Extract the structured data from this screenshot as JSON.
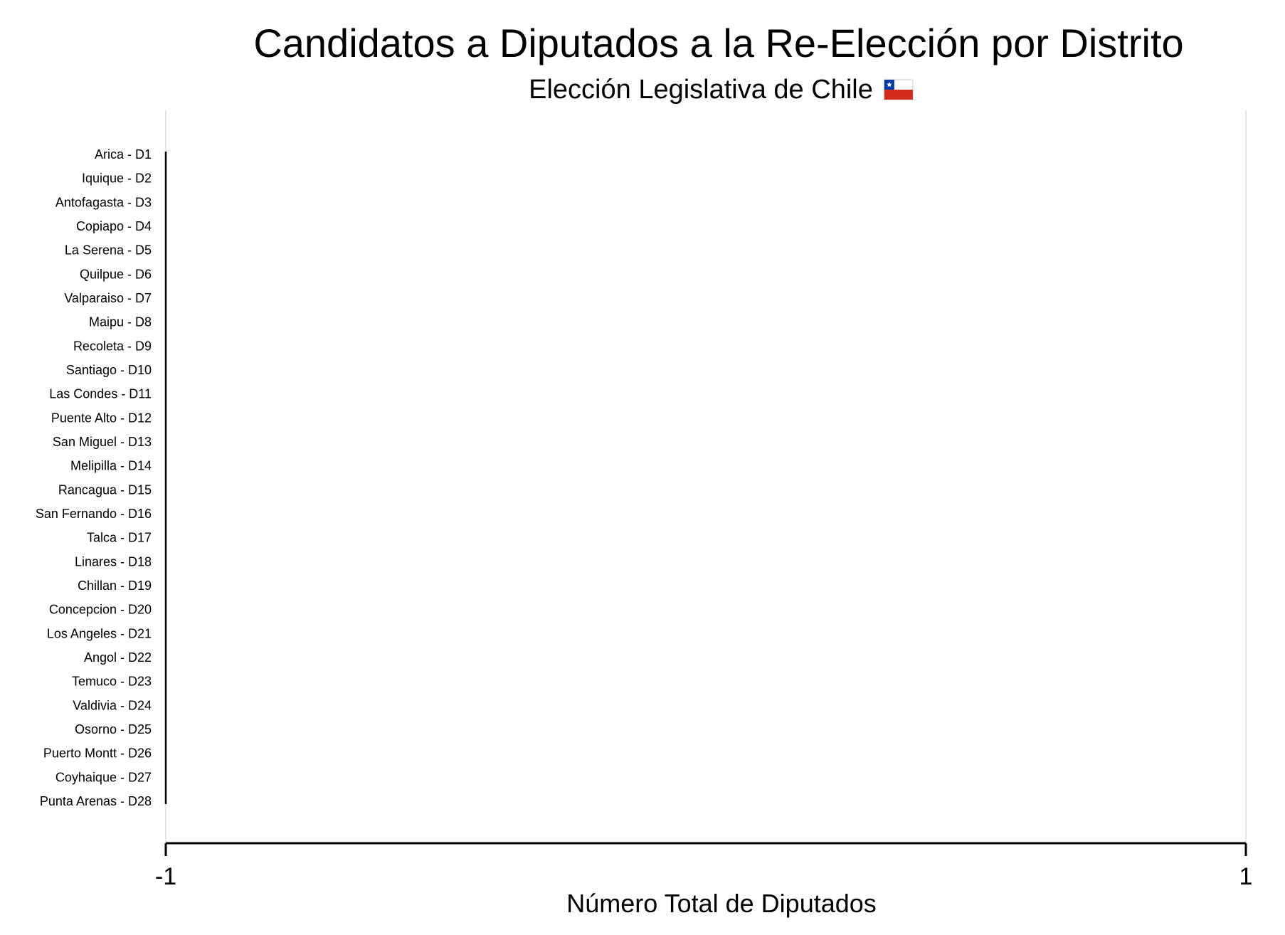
{
  "chart_data": {
    "type": "bar",
    "orientation": "horizontal",
    "title": "Candidatos a Diputados a la Re-Elección por Distrito",
    "subtitle": "Elección Legislativa de Chile",
    "subtitle_icon": "chile-flag-icon",
    "xlabel": "Número Total de Diputados",
    "ylabel": "",
    "xlim": [
      -1,
      1
    ],
    "xticks": [
      -1,
      1
    ],
    "xtick_labels": [
      "-1",
      "1"
    ],
    "grid": false,
    "legend": "none",
    "categories": [
      "Arica - D1",
      "Iquique - D2",
      "Antofagasta - D3",
      "Copiapo - D4",
      "La Serena - D5",
      "Quilpue - D6",
      "Valparaiso - D7",
      "Maipu - D8",
      "Recoleta - D9",
      "Santiago - D10",
      "Las Condes - D11",
      "Puente Alto - D12",
      "San Miguel - D13",
      "Melipilla - D14",
      "Rancagua - D15",
      "San Fernando - D16",
      "Talca - D17",
      "Linares - D18",
      "Chillan - D19",
      "Concepcion - D20",
      "Los Angeles - D21",
      "Angol - D22",
      "Temuco - D23",
      "Valdivia - D24",
      "Osorno - D25",
      "Puerto Montt - D26",
      "Coyhaique - D27",
      "Punta Arenas - D28"
    ],
    "values": [
      0,
      0,
      0,
      0,
      0,
      0,
      0,
      0,
      0,
      0,
      0,
      0,
      0,
      0,
      0,
      0,
      0,
      0,
      0,
      0,
      0,
      0,
      0,
      0,
      0,
      0,
      0,
      0
    ],
    "colors": {
      "axis": "#000000",
      "gridline": "#e6e6e6",
      "flag_red": "#d52b1e",
      "flag_blue": "#0039a6",
      "flag_white": "#ffffff"
    }
  }
}
